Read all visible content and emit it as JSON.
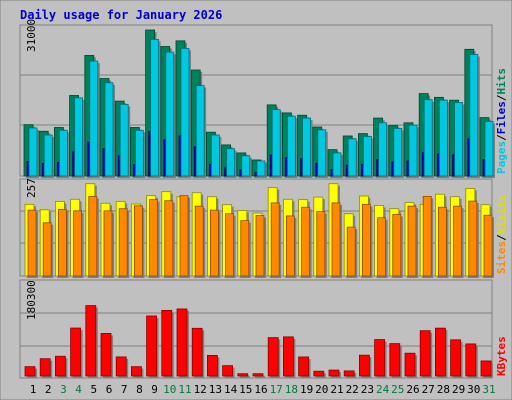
{
  "title": "Daily usage for January 2026",
  "colors": {
    "frame_bg": "#c0c0c0",
    "title": "#0000cc",
    "hits": "#00805b",
    "files": "#0000cc",
    "pages": "#00c8e0",
    "visits": "#ffff00",
    "sites": "#ff8800",
    "kbytes": "#ff0000",
    "weekend_day": "#007a3d"
  },
  "chart_data": [
    {
      "type": "bar",
      "name": "pages-files-hits",
      "ylabel_parts": [
        "Pages",
        "Files",
        "Hits"
      ],
      "ymax_label": "31000",
      "ylim": [
        0,
        31000
      ],
      "categories": [
        "1",
        "2",
        "3",
        "4",
        "5",
        "6",
        "7",
        "8",
        "9",
        "10",
        "11",
        "12",
        "13",
        "14",
        "15",
        "16",
        "17",
        "18",
        "19",
        "20",
        "21",
        "22",
        "23",
        "24",
        "25",
        "26",
        "27",
        "28",
        "29",
        "30",
        "31"
      ],
      "series": [
        {
          "name": "Hits",
          "values": [
            10900,
            9500,
            10300,
            17100,
            25600,
            20700,
            15900,
            10300,
            31000,
            27500,
            28700,
            22500,
            9300,
            6600,
            4900,
            3400,
            15100,
            13400,
            12900,
            10400,
            5600,
            8500,
            9000,
            12300,
            10700,
            11300,
            17500,
            16700,
            16100,
            26900,
            12400
          ]
        },
        {
          "name": "Files",
          "values": [
            3100,
            2700,
            2900,
            5100,
            7200,
            5800,
            4300,
            2400,
            9500,
            7700,
            8500,
            6200,
            2500,
            1700,
            1300,
            800,
            4500,
            3900,
            3700,
            2700,
            1400,
            2300,
            2500,
            3500,
            3000,
            3200,
            5000,
            4700,
            4500,
            7900,
            3500
          ]
        },
        {
          "name": "Pages",
          "values": [
            10200,
            8700,
            9700,
            16600,
            24400,
            19800,
            15200,
            9700,
            29000,
            26300,
            27100,
            19200,
            8700,
            5800,
            4300,
            3200,
            14100,
            12700,
            12300,
            9800,
            4900,
            7900,
            8400,
            11300,
            10100,
            10800,
            16200,
            16100,
            15600,
            25800,
            11600
          ]
        }
      ]
    },
    {
      "type": "bar",
      "name": "sites-visits",
      "ylabel_parts": [
        "Sites",
        "Visits"
      ],
      "ymax_label": "257",
      "ylim": [
        0,
        257
      ],
      "categories": [
        "1",
        "2",
        "3",
        "4",
        "5",
        "6",
        "7",
        "8",
        "9",
        "10",
        "11",
        "12",
        "13",
        "14",
        "15",
        "16",
        "17",
        "18",
        "19",
        "20",
        "21",
        "22",
        "23",
        "24",
        "25",
        "26",
        "27",
        "28",
        "29",
        "30",
        "31"
      ],
      "series": [
        {
          "name": "Visits",
          "values": [
            198,
            183,
            206,
            212,
            255,
            201,
            206,
            199,
            222,
            233,
            219,
            230,
            219,
            197,
            181,
            174,
            244,
            212,
            211,
            218,
            255,
            172,
            221,
            195,
            186,
            203,
            198,
            226,
            219,
            242,
            197
          ]
        },
        {
          "name": "Sites",
          "values": [
            182,
            147,
            184,
            180,
            220,
            180,
            186,
            194,
            211,
            208,
            222,
            193,
            182,
            172,
            153,
            167,
            202,
            166,
            190,
            178,
            202,
            135,
            198,
            161,
            170,
            193,
            220,
            190,
            193,
            207,
            168
          ]
        }
      ]
    },
    {
      "type": "bar",
      "name": "kbytes",
      "ylabel_parts": [
        "KBytes"
      ],
      "ymax_label": "180300",
      "ylim": [
        0,
        180300
      ],
      "categories": [
        "1",
        "2",
        "3",
        "4",
        "5",
        "6",
        "7",
        "8",
        "9",
        "10",
        "11",
        "12",
        "13",
        "14",
        "15",
        "16",
        "17",
        "18",
        "19",
        "20",
        "21",
        "22",
        "23",
        "24",
        "25",
        "26",
        "27",
        "28",
        "29",
        "30",
        "31"
      ],
      "series": [
        {
          "name": "KBytes",
          "values": [
            18300,
            33900,
            38700,
            94000,
            138000,
            83500,
            37400,
            18300,
            117700,
            128600,
            131400,
            93500,
            40400,
            20300,
            4500,
            4500,
            75300,
            76700,
            37300,
            9400,
            11600,
            10000,
            40800,
            71400,
            63500,
            44700,
            88800,
            93800,
            70900,
            62900,
            29500
          ]
        }
      ]
    }
  ],
  "days": [
    "1",
    "2",
    "3",
    "4",
    "5",
    "6",
    "7",
    "8",
    "9",
    "10",
    "11",
    "12",
    "13",
    "14",
    "15",
    "16",
    "17",
    "18",
    "19",
    "20",
    "21",
    "22",
    "23",
    "24",
    "25",
    "26",
    "27",
    "28",
    "29",
    "30",
    "31"
  ],
  "weekend_days": [
    "3",
    "4",
    "10",
    "11",
    "17",
    "18",
    "24",
    "25",
    "31"
  ]
}
